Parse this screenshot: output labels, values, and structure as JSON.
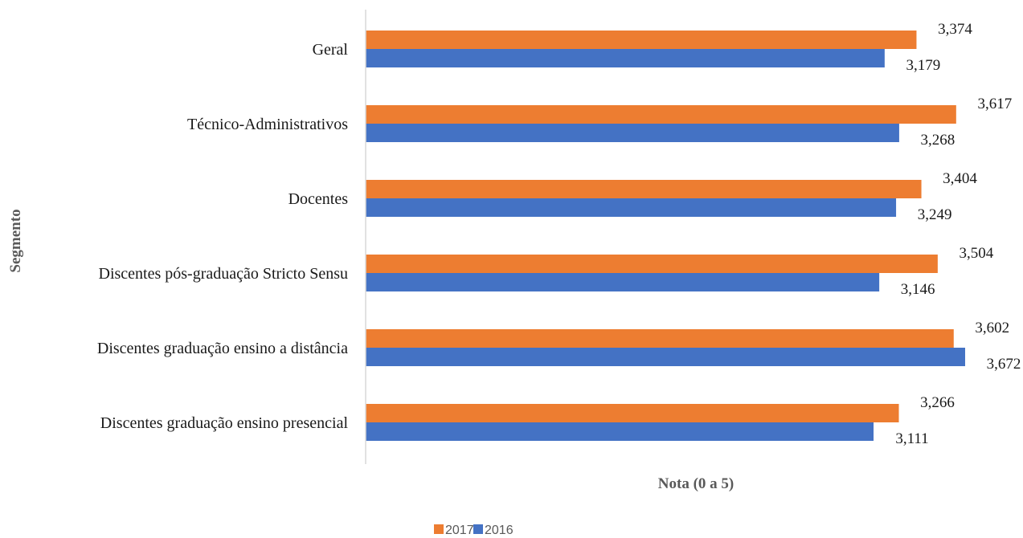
{
  "chart_data": {
    "type": "bar",
    "orientation": "horizontal",
    "categories": [
      "Geral",
      "Técnico-Administrativos",
      "Docentes",
      "Discentes pós-graduação Stricto Sensu",
      "Discentes graduação ensino a distância",
      "Discentes graduação ensino presencial"
    ],
    "series": [
      {
        "name": "2017",
        "color": "#ED7D31",
        "values": [
          3.374,
          3.617,
          3.404,
          3.504,
          3.602,
          3.266
        ],
        "labels": [
          "3,374",
          "3,617",
          "3,404",
          "3,504",
          "3,602",
          "3,266"
        ]
      },
      {
        "name": "2016",
        "color": "#4472C4",
        "values": [
          3.179,
          3.268,
          3.249,
          3.146,
          3.672,
          3.111
        ],
        "labels": [
          "3,179",
          "3,268",
          "3,249",
          "3,146",
          "3,672",
          "3,111"
        ]
      }
    ],
    "xlabel": "Nota (0 a 5)",
    "ylabel": "Segmento",
    "xlim": [
      0,
      3.672
    ],
    "grid": false,
    "legend_position": "bottom"
  }
}
